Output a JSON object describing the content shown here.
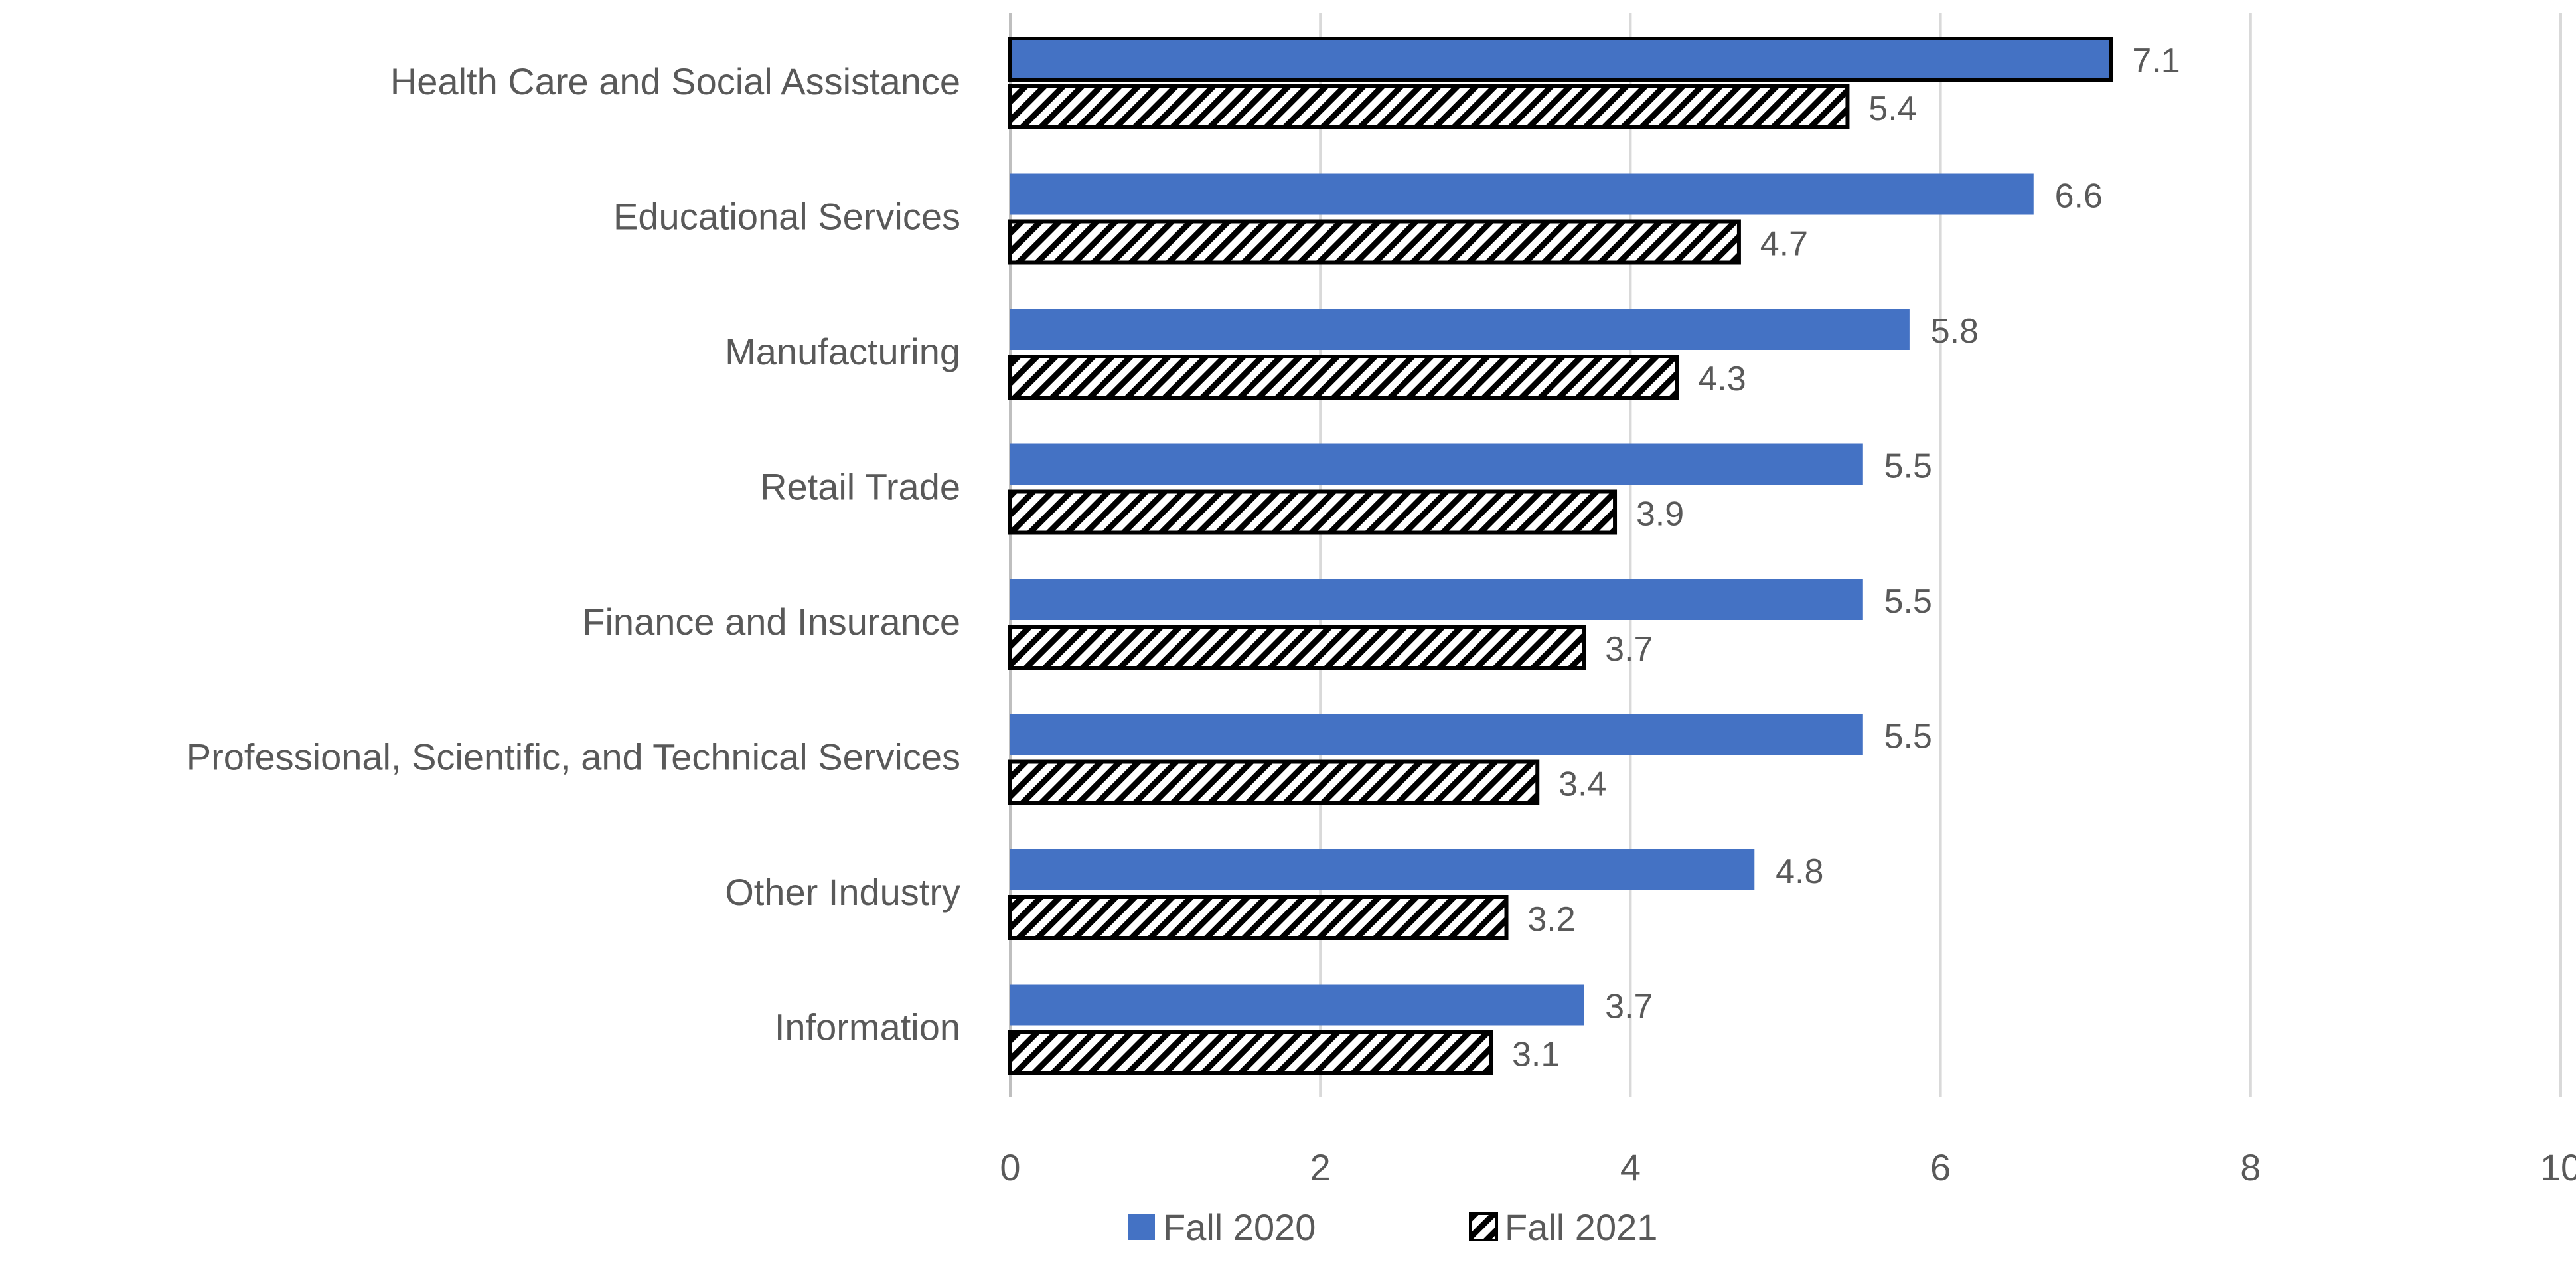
{
  "chart_data": {
    "type": "bar",
    "orientation": "horizontal",
    "title": "",
    "xlabel": "",
    "ylabel": "",
    "xlim": [
      0,
      10
    ],
    "xticks": [
      0,
      2,
      4,
      6,
      8,
      10
    ],
    "grid": "vertical",
    "legend_position": "bottom",
    "categories": [
      "Health Care and Social Assistance",
      "Educational Services",
      "Manufacturing",
      "Retail Trade",
      "Finance and Insurance",
      "Professional, Scientific, and Technical Services",
      "Other Industry",
      "Information"
    ],
    "series": [
      {
        "name": "Fall 2020",
        "style": "solid",
        "color": "#4472c4",
        "values": [
          7.1,
          6.6,
          5.8,
          5.5,
          5.5,
          5.5,
          4.8,
          3.7
        ],
        "value_labels": [
          "7.1",
          "6.6",
          "5.8",
          "5.5",
          "5.5",
          "5.5",
          "4.8",
          "3.7"
        ]
      },
      {
        "name": "Fall 2021",
        "style": "hatched",
        "color": "#000000",
        "values": [
          5.4,
          4.7,
          4.3,
          3.9,
          3.7,
          3.4,
          3.2,
          3.1
        ],
        "value_labels": [
          "5.4",
          "4.7",
          "4.3",
          "3.9",
          "3.7",
          "3.4",
          "3.2",
          "3.1"
        ]
      }
    ]
  }
}
